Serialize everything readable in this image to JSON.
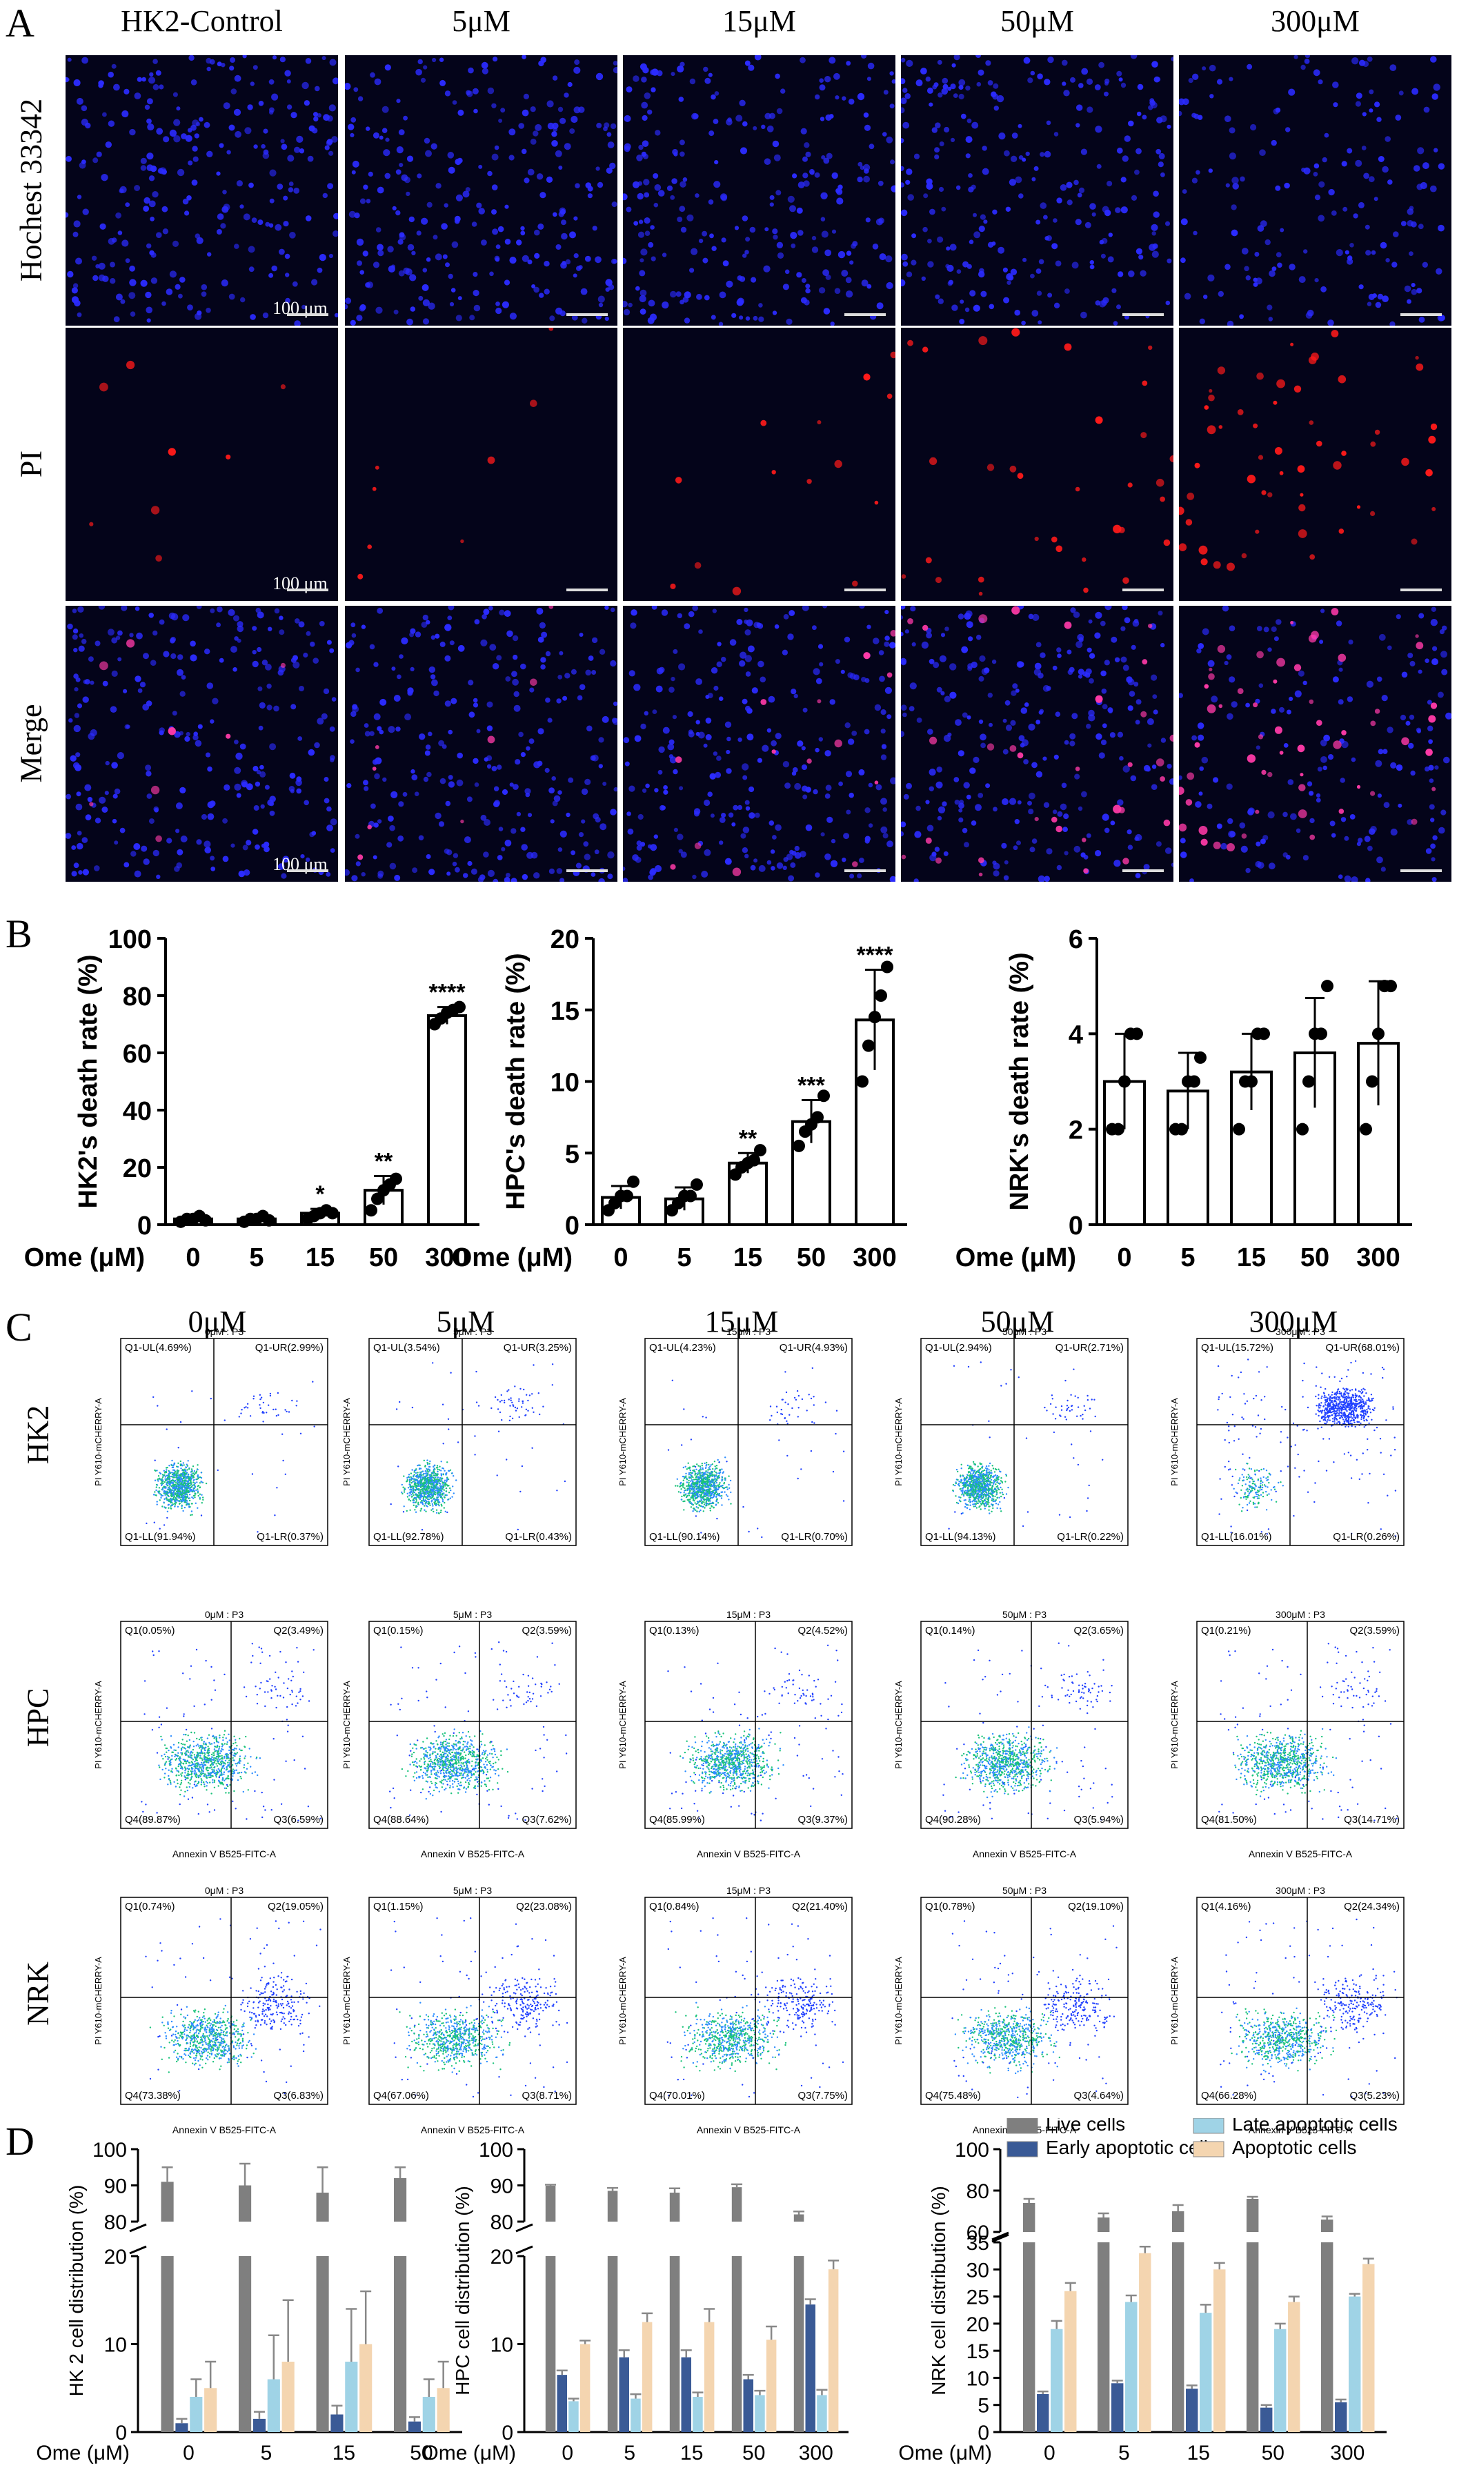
{
  "panels": {
    "A": "A",
    "B": "B",
    "C": "C",
    "D": "D"
  },
  "panelA": {
    "columns": [
      "HK2-Control",
      "5μM",
      "15μM",
      "50μM",
      "300μM"
    ],
    "rows": [
      "Hochest 33342",
      "PI",
      "Merge"
    ],
    "scale_bar": "100 μm",
    "pi_density": [
      0.2,
      0.2,
      0.35,
      0.8,
      1.4
    ]
  },
  "chart_data": [
    {
      "type": "bar",
      "ylabel": "HK2's death rate (%)",
      "xlabel": "Ome (μM)",
      "categories": [
        "0",
        "5",
        "15",
        "50",
        "300"
      ],
      "values": [
        2,
        2,
        4,
        12,
        73
      ],
      "errors": [
        1,
        1,
        1.5,
        5,
        3
      ],
      "ylim": [
        0,
        100
      ],
      "yticks": [
        0,
        20,
        40,
        60,
        80,
        100
      ],
      "sig": [
        "",
        "",
        "*",
        "**",
        "****"
      ],
      "points": [
        [
          1,
          2,
          2,
          3,
          1.5
        ],
        [
          1,
          2,
          2,
          3,
          1.5
        ],
        [
          2,
          3,
          4,
          5,
          4
        ],
        [
          5,
          9,
          12,
          14,
          16
        ],
        [
          70,
          72,
          74,
          75,
          76
        ]
      ]
    },
    {
      "type": "bar",
      "ylabel": "HPC's death rate (%)",
      "xlabel": "Ome (μM)",
      "categories": [
        "0",
        "5",
        "15",
        "50",
        "300"
      ],
      "values": [
        1.9,
        1.8,
        4.3,
        7.2,
        14.3
      ],
      "errors": [
        0.8,
        0.8,
        0.7,
        1.5,
        3.5
      ],
      "ylim": [
        0,
        20
      ],
      "yticks": [
        0,
        5,
        10,
        15,
        20
      ],
      "sig": [
        "",
        "",
        "**",
        "***",
        "****"
      ],
      "points": [
        [
          1,
          1.5,
          2,
          2,
          3
        ],
        [
          1,
          1.5,
          2,
          2,
          2.8
        ],
        [
          3.5,
          4,
          4.3,
          4.5,
          5.2
        ],
        [
          5.5,
          6.5,
          7,
          7.5,
          9
        ],
        [
          10,
          12.5,
          14.5,
          16,
          18
        ]
      ]
    },
    {
      "type": "bar",
      "ylabel": "NRK's death rate (%)",
      "xlabel": "Ome (μM)",
      "categories": [
        "0",
        "5",
        "15",
        "50",
        "300"
      ],
      "values": [
        3,
        2.8,
        3.2,
        3.6,
        3.8
      ],
      "errors": [
        1,
        0.8,
        0.8,
        1.15,
        1.3
      ],
      "ylim": [
        0,
        6
      ],
      "yticks": [
        0,
        2,
        4,
        6
      ],
      "sig": [
        "",
        "",
        "",
        "",
        ""
      ],
      "points": [
        [
          2,
          2,
          3,
          4,
          4
        ],
        [
          2,
          2,
          3,
          3,
          3.5
        ],
        [
          2,
          3,
          3,
          4,
          4
        ],
        [
          2,
          3,
          4,
          4,
          5
        ],
        [
          2,
          3,
          4,
          5,
          5
        ]
      ]
    },
    {
      "type": "bar",
      "ylabel": "HK 2 cell distribution (%)",
      "xlabel": "Ome (μM)",
      "categories": [
        "0",
        "5",
        "15",
        "50"
      ],
      "series": [
        {
          "name": "Live cells",
          "values": [
            91,
            90,
            88,
            92
          ],
          "errors": [
            4,
            6,
            7,
            3
          ]
        },
        {
          "name": "Early apoptotic cells",
          "values": [
            1,
            1.5,
            2,
            1.2
          ],
          "errors": [
            0.5,
            0.8,
            1,
            0.5
          ]
        },
        {
          "name": "Late apoptotic cells",
          "values": [
            4,
            6,
            8,
            4
          ],
          "errors": [
            2,
            5,
            6,
            2
          ]
        },
        {
          "name": "Apoptotic cells",
          "values": [
            5,
            8,
            10,
            5
          ],
          "errors": [
            3,
            7,
            6,
            3
          ]
        }
      ],
      "ylim": [
        0,
        100
      ],
      "yticks_low": [
        0,
        10,
        20
      ],
      "yticks_high": [
        80,
        90,
        100
      ]
    },
    {
      "type": "bar",
      "ylabel": "HPC cell distribution (%)",
      "xlabel": "Ome (μM)",
      "categories": [
        "0",
        "5",
        "15",
        "50",
        "300"
      ],
      "series": [
        {
          "name": "Live cells",
          "values": [
            89.9,
            88.5,
            88,
            89.5,
            82
          ],
          "errors": [
            0.3,
            0.8,
            1.2,
            0.8,
            0.8
          ]
        },
        {
          "name": "Early apoptotic cells",
          "values": [
            6.5,
            8.5,
            8.5,
            6,
            14.5
          ],
          "errors": [
            0.5,
            0.8,
            0.8,
            0.5,
            0.6
          ]
        },
        {
          "name": "Late apoptotic cells",
          "values": [
            3.5,
            3.8,
            4,
            4.2,
            4.2
          ],
          "errors": [
            0.3,
            0.5,
            0.5,
            0.5,
            0.6
          ]
        },
        {
          "name": "Apoptotic cells",
          "values": [
            10,
            12.5,
            12.5,
            10.5,
            18.5
          ],
          "errors": [
            0.4,
            1,
            1.5,
            1.5,
            1
          ]
        }
      ],
      "ylim": [
        0,
        100
      ],
      "yticks_low": [
        0,
        10,
        20
      ],
      "yticks_high": [
        80,
        90,
        100
      ]
    },
    {
      "type": "bar",
      "ylabel": "NRK cell distribution (%)",
      "xlabel": "Ome (μM)",
      "categories": [
        "0",
        "5",
        "15",
        "50",
        "300"
      ],
      "series": [
        {
          "name": "Live cells",
          "values": [
            74,
            67,
            70,
            76,
            66
          ],
          "errors": [
            2,
            2,
            3,
            1,
            1.5
          ]
        },
        {
          "name": "Early apoptotic cells",
          "values": [
            7,
            9,
            8,
            4.5,
            5.5
          ],
          "errors": [
            0.5,
            0.5,
            0.6,
            0.5,
            0.5
          ]
        },
        {
          "name": "Late apoptotic cells",
          "values": [
            19,
            24,
            22,
            19,
            25
          ],
          "errors": [
            1.5,
            1.2,
            1.5,
            1,
            0.5
          ]
        },
        {
          "name": "Apoptotic cells",
          "values": [
            26,
            33,
            30,
            24,
            31
          ],
          "errors": [
            1.5,
            1.2,
            1.2,
            1,
            1
          ]
        }
      ],
      "ylim": [
        0,
        100
      ],
      "yticks_low": [
        0,
        5,
        10,
        15,
        20,
        25,
        30,
        35
      ],
      "yticks_high": [
        60,
        80,
        100
      ]
    }
  ],
  "panelD": {
    "legend": [
      "Live cells",
      "Late apoptotic cells",
      "Early apoptotic cells",
      "Apoptotic cells"
    ],
    "colors": {
      "Live cells": "#7f7f7f",
      "Early apoptotic cells": "#3a5a96",
      "Late apoptotic cells": "#9fd3e6",
      "Apoptotic cells": "#f4d5b0"
    }
  },
  "panelC": {
    "columns": [
      "0μM",
      "5μM",
      "15μM",
      "50μM",
      "300μM"
    ],
    "rows": [
      "HK2",
      "HPC",
      "NRK"
    ],
    "ylabel": "PI Y610-mCHERRY-A",
    "xlabel": "Annexin V B525-FITC-A",
    "titles": [
      "0μM : P3",
      "5μM : P3",
      "15μM : P3",
      "50μM : P3",
      "300μM : P3"
    ],
    "hk2": [
      {
        "ul": "Q1-UL(4.69%)",
        "ur": "Q1-UR(2.99%)",
        "ll": "Q1-LL(91.94%)",
        "lr": "Q1-LR(0.37%)"
      },
      {
        "ul": "Q1-UL(3.54%)",
        "ur": "Q1-UR(3.25%)",
        "ll": "Q1-LL(92.78%)",
        "lr": "Q1-LR(0.43%)"
      },
      {
        "ul": "Q1-UL(4.23%)",
        "ur": "Q1-UR(4.93%)",
        "ll": "Q1-LL(90.14%)",
        "lr": "Q1-LR(0.70%)"
      },
      {
        "ul": "Q1-UL(2.94%)",
        "ur": "Q1-UR(2.71%)",
        "ll": "Q1-LL(94.13%)",
        "lr": "Q1-LR(0.22%)"
      },
      {
        "ul": "Q1-UL(15.72%)",
        "ur": "Q1-UR(68.01%)",
        "ll": "Q1-LL(16.01%)",
        "lr": "Q1-LR(0.26%)"
      }
    ],
    "hpc": [
      {
        "ul": "Q1(0.05%)",
        "ur": "Q2(3.49%)",
        "ll": "Q4(89.87%)",
        "lr": "Q3(6.59%)"
      },
      {
        "ul": "Q1(0.15%)",
        "ur": "Q2(3.59%)",
        "ll": "Q4(88.64%)",
        "lr": "Q3(7.62%)"
      },
      {
        "ul": "Q1(0.13%)",
        "ur": "Q2(4.52%)",
        "ll": "Q4(85.99%)",
        "lr": "Q3(9.37%)"
      },
      {
        "ul": "Q1(0.14%)",
        "ur": "Q2(3.65%)",
        "ll": "Q4(90.28%)",
        "lr": "Q3(5.94%)"
      },
      {
        "ul": "Q1(0.21%)",
        "ur": "Q2(3.59%)",
        "ll": "Q4(81.50%)",
        "lr": "Q3(14.71%)"
      }
    ],
    "nrk": [
      {
        "ul": "Q1(0.74%)",
        "ur": "Q2(19.05%)",
        "ll": "Q4(73.38%)",
        "lr": "Q3(6.83%)"
      },
      {
        "ul": "Q1(1.15%)",
        "ur": "Q2(23.08%)",
        "ll": "Q4(67.06%)",
        "lr": "Q3(8.71%)"
      },
      {
        "ul": "Q1(0.84%)",
        "ur": "Q2(21.40%)",
        "ll": "Q4(70.01%)",
        "lr": "Q3(7.75%)"
      },
      {
        "ul": "Q1(0.78%)",
        "ur": "Q2(19.10%)",
        "ll": "Q4(75.48%)",
        "lr": "Q3(4.64%)"
      },
      {
        "ul": "Q1(4.16%)",
        "ur": "Q2(24.34%)",
        "ll": "Q4(66.28%)",
        "lr": "Q3(5.23%)"
      }
    ]
  }
}
